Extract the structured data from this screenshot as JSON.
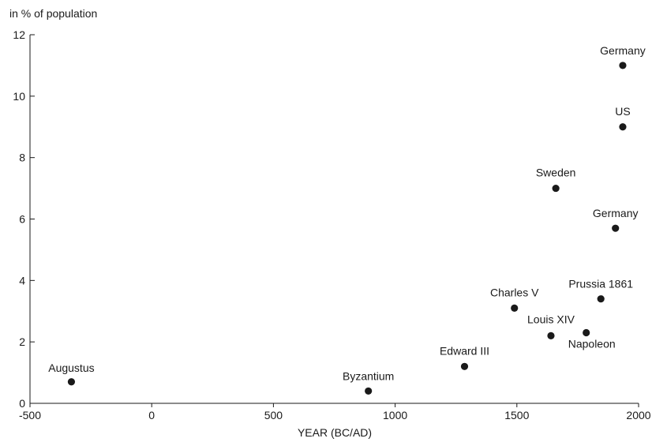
{
  "chart_data": {
    "type": "scatter",
    "title": "",
    "ylabel": "in % of population",
    "xlabel": "YEAR (BC/AD)",
    "xlim": [
      -500,
      2000
    ],
    "ylim": [
      0,
      12
    ],
    "xticks": [
      -500,
      0,
      500,
      1000,
      1500,
      2000
    ],
    "yticks": [
      0,
      2,
      4,
      6,
      8,
      10,
      12
    ],
    "grid": false,
    "points": [
      {
        "label": "Augustus",
        "x": -330,
        "y": 0.7
      },
      {
        "label": "Byzantium",
        "x": 890,
        "y": 0.4
      },
      {
        "label": "Edward III",
        "x": 1285,
        "y": 1.2
      },
      {
        "label": "Charles V",
        "x": 1490,
        "y": 3.1
      },
      {
        "label": "Louis XIV",
        "x": 1640,
        "y": 2.2
      },
      {
        "label": "Sweden",
        "x": 1660,
        "y": 7.0
      },
      {
        "label": "Napoleon",
        "x": 1785,
        "y": 2.3
      },
      {
        "label": "Prussia 1861",
        "x": 1845,
        "y": 3.4
      },
      {
        "label": "Germany",
        "x": 1905,
        "y": 5.7
      },
      {
        "label": "US",
        "x": 1935,
        "y": 9.0
      },
      {
        "label": "Germany",
        "x": 1935,
        "y": 11.0
      }
    ],
    "marker_color": "#1a1a1a"
  }
}
